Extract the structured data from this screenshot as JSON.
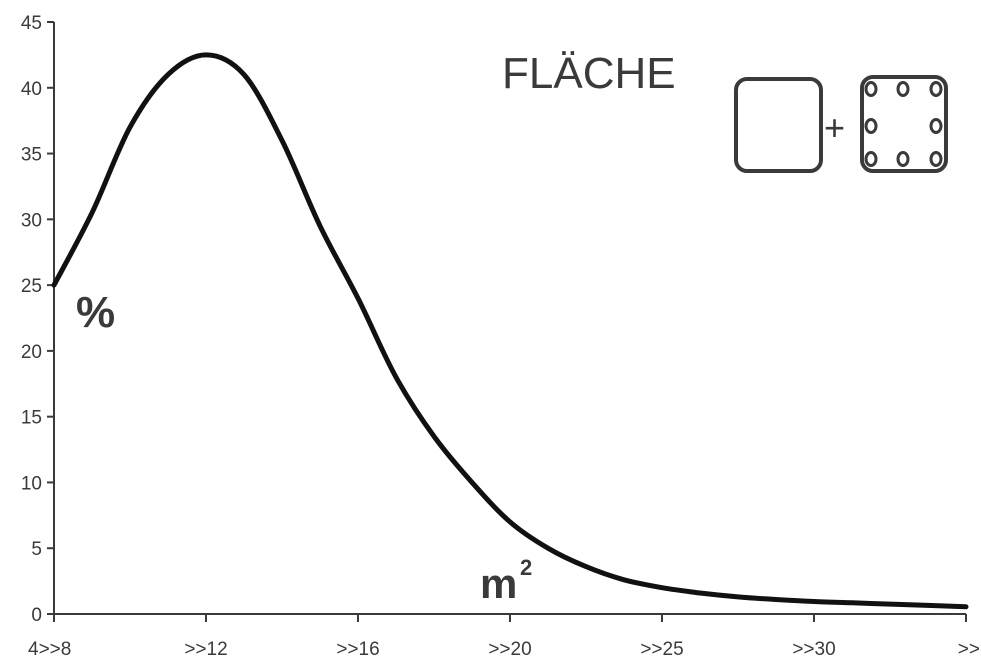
{
  "chart_data": {
    "type": "line",
    "title": "FLÄCHE",
    "ylabel": "%",
    "xlabel": "m",
    "xlabel_superscript": "2",
    "ylim": [
      0,
      45
    ],
    "yticks": [
      "0",
      "5",
      "10",
      "15",
      "20",
      "25",
      "30",
      "35",
      "40",
      "45"
    ],
    "xticks": [
      "4>>8",
      ">>12",
      ">>16",
      ">>20",
      ">>25",
      ">>30",
      ">>"
    ],
    "grid": false,
    "legend": "none",
    "series": [
      {
        "x": [
          0,
          0.25,
          0.5,
          0.75,
          1.0,
          1.25,
          1.5,
          1.75,
          2.0,
          2.25,
          2.5,
          2.75,
          3.0,
          3.25,
          3.5,
          3.75,
          4.0,
          4.25,
          4.5,
          4.75,
          5.0,
          5.25,
          5.5,
          5.75,
          6.0
        ],
        "values": [
          25.0,
          30.5,
          37.0,
          41.0,
          42.5,
          41.0,
          36.0,
          29.5,
          24.0,
          18.0,
          13.5,
          10.0,
          7.0,
          5.0,
          3.6,
          2.6,
          2.0,
          1.6,
          1.3,
          1.1,
          0.95,
          0.85,
          0.75,
          0.65,
          0.55
        ]
      }
    ],
    "line_color": "#111111",
    "icon": {
      "name": "square-plus-rebar-square-icon",
      "plus": "+"
    }
  }
}
